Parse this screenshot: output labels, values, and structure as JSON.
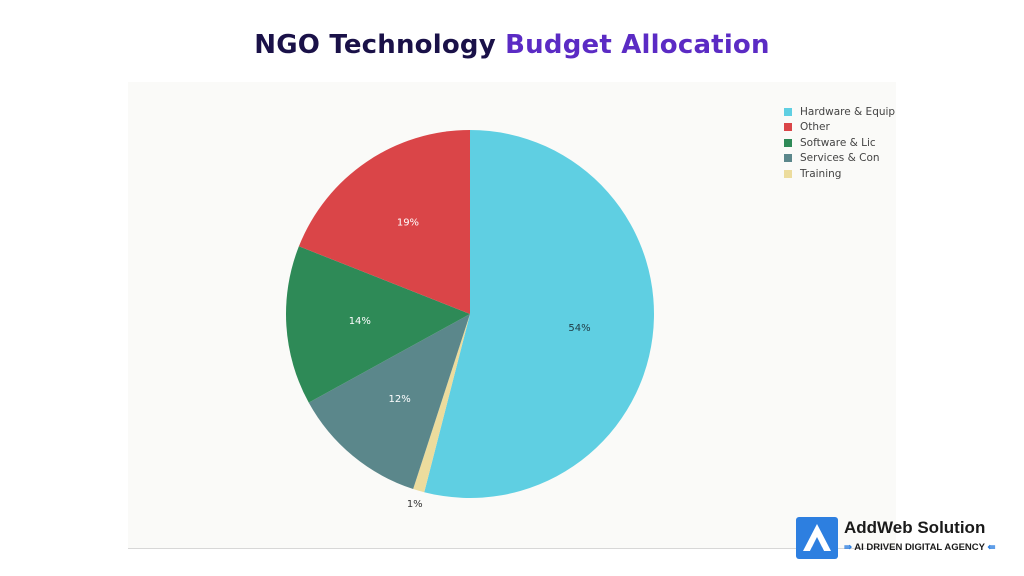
{
  "title": {
    "part1": "NGO Technology",
    "part2": "Budget Allocation"
  },
  "colors": {
    "title_dark": "#1a1148",
    "title_accent": "#5b2bc4",
    "brand_blue": "#2d7fe0"
  },
  "chart_data": {
    "type": "pie",
    "title": "NGO Technology Budget Allocation",
    "categories": [
      "Hardware & Equip",
      "Training",
      "Services & Con",
      "Software & Lic",
      "Other"
    ],
    "values": [
      54,
      1,
      12,
      14,
      19
    ],
    "labels": [
      "54%",
      "1%",
      "12%",
      "14%",
      "19%"
    ],
    "colors": [
      "#5fcfe2",
      "#ecdc9d",
      "#5b878b",
      "#2e8a57",
      "#da4548"
    ],
    "label_colors": [
      "#1f3b44",
      "#333333",
      "#ffffff",
      "#ffffff",
      "#ffffff"
    ],
    "start": "top",
    "direction": "clockwise",
    "legend": {
      "position": "top-right",
      "order": [
        "Hardware & Equip",
        "Other",
        "Software & Lic",
        "Services & Con",
        "Training"
      ]
    }
  },
  "brand": {
    "name": "AddWeb Solution",
    "tagline": "AI DRIVEN DIGITAL AGENCY",
    "icon": "addweb-logo-icon"
  }
}
